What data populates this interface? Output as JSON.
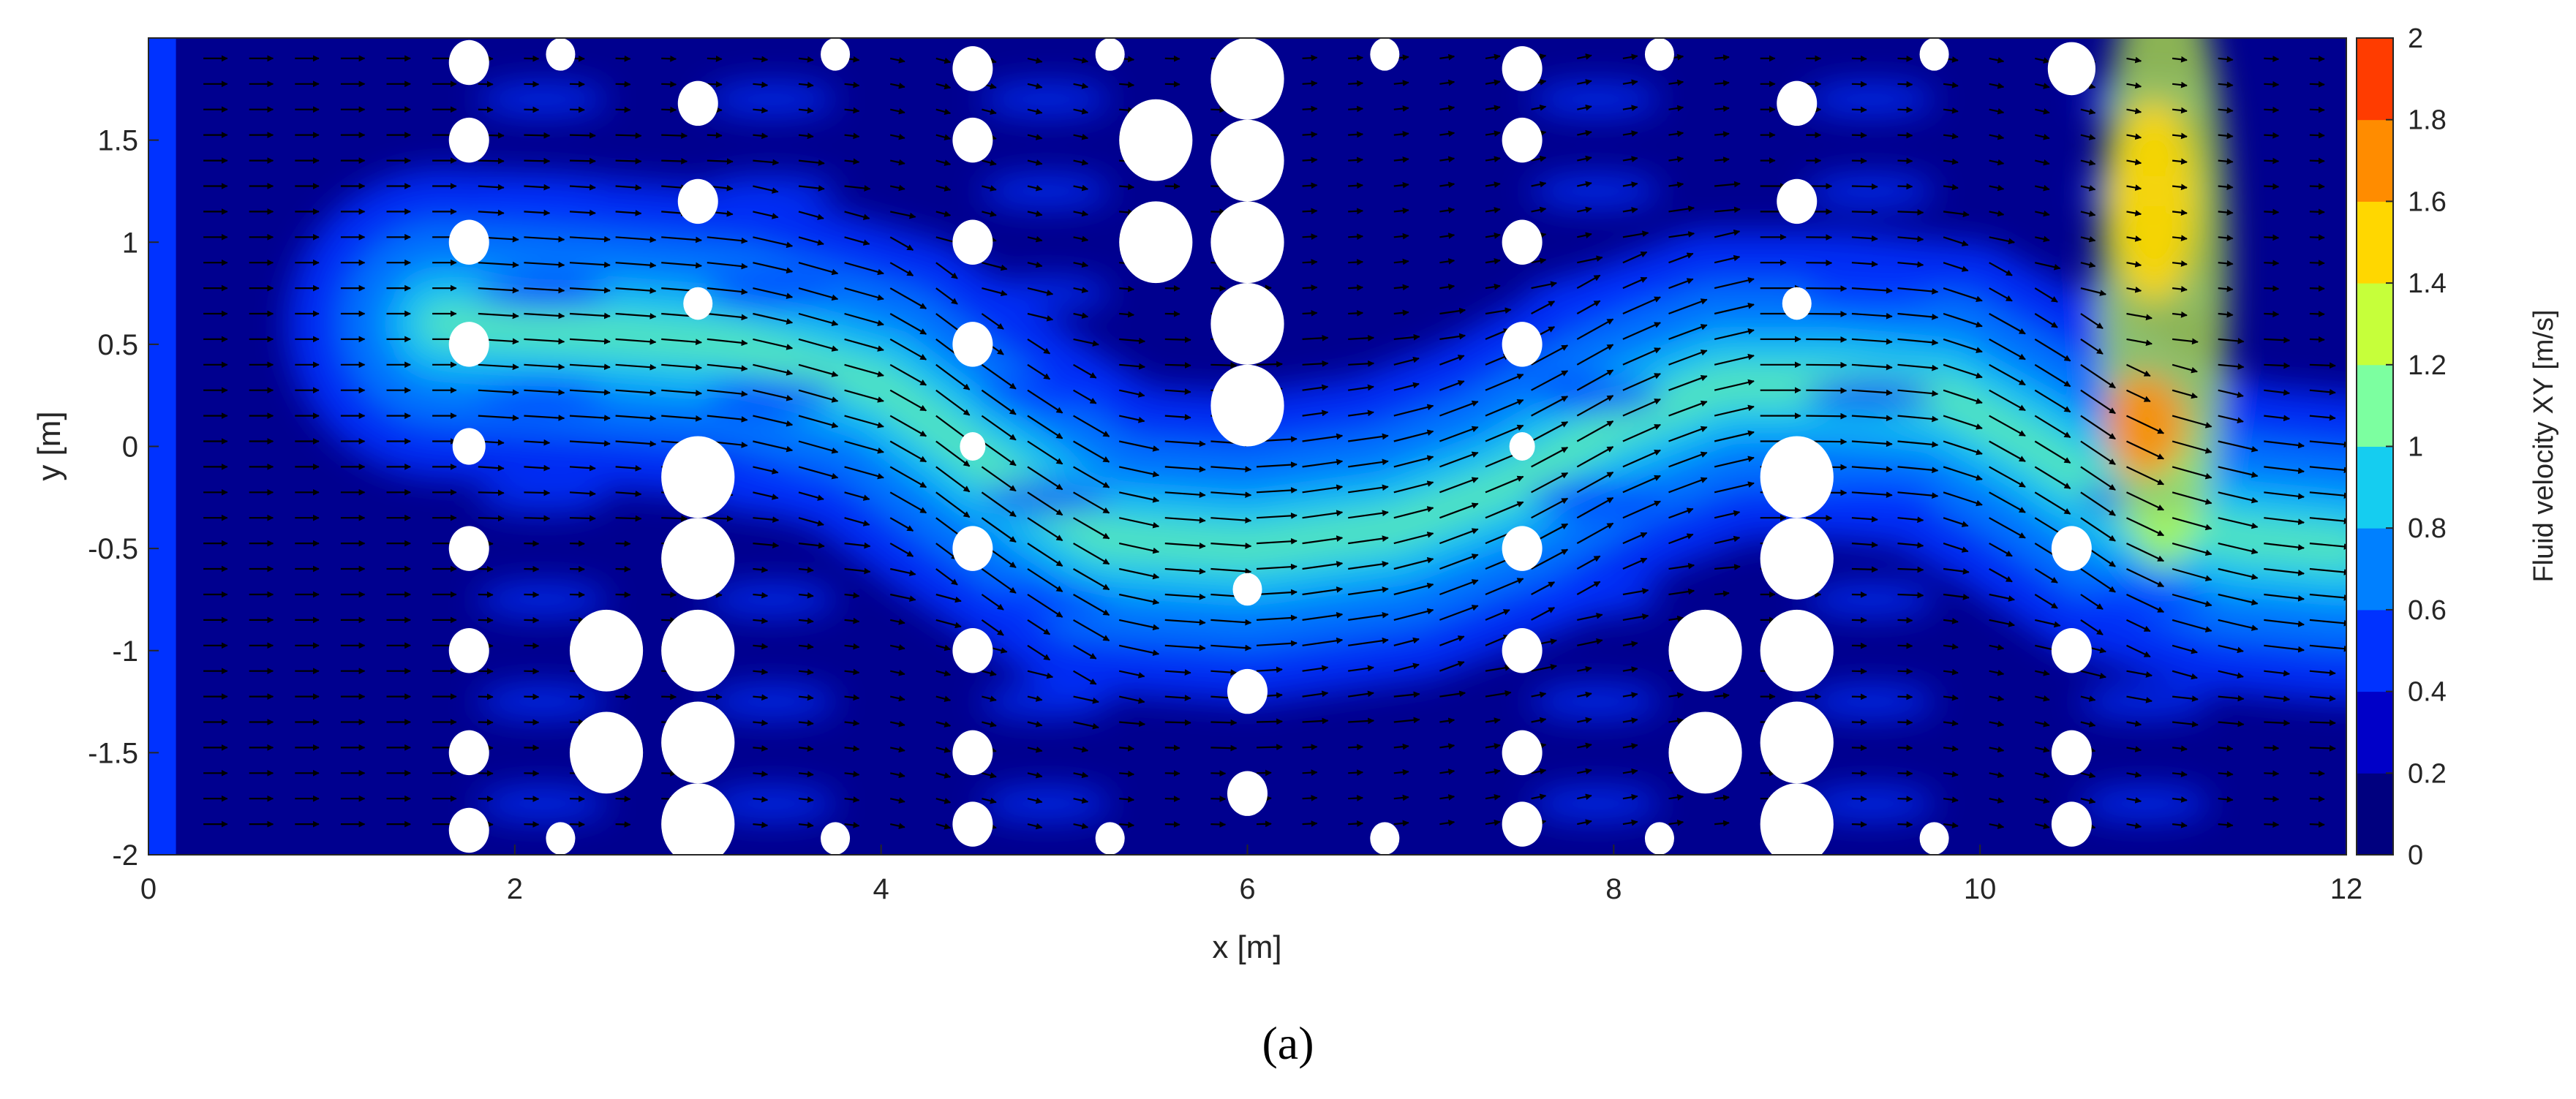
{
  "chart_data": {
    "type": "heatmap",
    "subtype": "velocity-field-with-vectors",
    "title": "",
    "xlabel": "x [m]",
    "ylabel": "y [m]",
    "xlim": [
      0,
      12
    ],
    "ylim": [
      -2,
      2
    ],
    "x_ticks": [
      "0",
      "2",
      "4",
      "6",
      "8",
      "10",
      "12"
    ],
    "y_ticks": [
      "-2",
      "-1.5",
      "-1",
      "-0.5",
      "0",
      "0.5",
      "1",
      "1.5"
    ],
    "y_tick_values": [
      -2,
      -1.5,
      -1,
      -0.5,
      0,
      0.5,
      1,
      1.5
    ],
    "x_tick_values": [
      0,
      2,
      4,
      6,
      8,
      10,
      12
    ],
    "grid": false,
    "colorbar": {
      "label": "Fluid velocity XY [m/s]",
      "range": [
        0,
        2
      ],
      "ticks": [
        "0",
        "0.2",
        "0.4",
        "0.6",
        "0.8",
        "1",
        "1.2",
        "1.4",
        "1.6",
        "1.8",
        "2"
      ],
      "colors": [
        "#00007f",
        "#0000c8",
        "#0032ff",
        "#0080ff",
        "#15cdf0",
        "#7cffa0",
        "#c6ff3a",
        "#ffd700",
        "#ff8c00",
        "#ff3c00"
      ]
    },
    "background_color": "#00008f",
    "obstacles": [
      {
        "x": 1.75,
        "y": 1.88,
        "r": 0.11
      },
      {
        "x": 1.75,
        "y": 1.5,
        "r": 0.11
      },
      {
        "x": 1.75,
        "y": 1.0,
        "r": 0.11
      },
      {
        "x": 1.75,
        "y": 0.5,
        "r": 0.11
      },
      {
        "x": 1.75,
        "y": 0.0,
        "r": 0.09
      },
      {
        "x": 1.75,
        "y": -0.5,
        "r": 0.11
      },
      {
        "x": 1.75,
        "y": -1.0,
        "r": 0.11
      },
      {
        "x": 1.75,
        "y": -1.5,
        "r": 0.11
      },
      {
        "x": 1.75,
        "y": -1.88,
        "r": 0.11
      },
      {
        "x": 2.25,
        "y": 1.92,
        "r": 0.08
      },
      {
        "x": 2.25,
        "y": -1.92,
        "r": 0.08
      },
      {
        "x": 3.0,
        "y": 1.68,
        "r": 0.11
      },
      {
        "x": 3.0,
        "y": 1.2,
        "r": 0.11
      },
      {
        "x": 3.0,
        "y": 0.7,
        "r": 0.08
      },
      {
        "x": 3.0,
        "y": -0.15,
        "r": 0.2
      },
      {
        "x": 3.0,
        "y": -0.55,
        "r": 0.2
      },
      {
        "x": 3.0,
        "y": -1.0,
        "r": 0.2
      },
      {
        "x": 3.0,
        "y": -1.45,
        "r": 0.2
      },
      {
        "x": 3.0,
        "y": -1.85,
        "r": 0.2
      },
      {
        "x": 2.5,
        "y": -1.0,
        "r": 0.2
      },
      {
        "x": 2.5,
        "y": -1.5,
        "r": 0.2
      },
      {
        "x": 3.75,
        "y": 1.92,
        "r": 0.08
      },
      {
        "x": 3.75,
        "y": -1.92,
        "r": 0.08
      },
      {
        "x": 4.5,
        "y": 1.85,
        "r": 0.11
      },
      {
        "x": 4.5,
        "y": 1.5,
        "r": 0.11
      },
      {
        "x": 4.5,
        "y": 1.0,
        "r": 0.11
      },
      {
        "x": 4.5,
        "y": 0.5,
        "r": 0.11
      },
      {
        "x": 4.5,
        "y": 0.0,
        "r": 0.07
      },
      {
        "x": 4.5,
        "y": -0.5,
        "r": 0.11
      },
      {
        "x": 4.5,
        "y": -1.0,
        "r": 0.11
      },
      {
        "x": 4.5,
        "y": -1.5,
        "r": 0.11
      },
      {
        "x": 4.5,
        "y": -1.85,
        "r": 0.11
      },
      {
        "x": 5.25,
        "y": 1.92,
        "r": 0.08
      },
      {
        "x": 5.25,
        "y": -1.92,
        "r": 0.08
      },
      {
        "x": 5.5,
        "y": 1.5,
        "r": 0.2
      },
      {
        "x": 5.5,
        "y": 1.0,
        "r": 0.2
      },
      {
        "x": 6.0,
        "y": 1.8,
        "r": 0.2
      },
      {
        "x": 6.0,
        "y": 1.4,
        "r": 0.2
      },
      {
        "x": 6.0,
        "y": 1.0,
        "r": 0.2
      },
      {
        "x": 6.0,
        "y": 0.6,
        "r": 0.2
      },
      {
        "x": 6.0,
        "y": 0.2,
        "r": 0.2
      },
      {
        "x": 6.0,
        "y": -0.7,
        "r": 0.08
      },
      {
        "x": 6.0,
        "y": -1.2,
        "r": 0.11
      },
      {
        "x": 6.0,
        "y": -1.7,
        "r": 0.11
      },
      {
        "x": 6.75,
        "y": 1.92,
        "r": 0.08
      },
      {
        "x": 6.75,
        "y": -1.92,
        "r": 0.08
      },
      {
        "x": 7.5,
        "y": 1.85,
        "r": 0.11
      },
      {
        "x": 7.5,
        "y": 1.5,
        "r": 0.11
      },
      {
        "x": 7.5,
        "y": 1.0,
        "r": 0.11
      },
      {
        "x": 7.5,
        "y": 0.5,
        "r": 0.11
      },
      {
        "x": 7.5,
        "y": 0.0,
        "r": 0.07
      },
      {
        "x": 7.5,
        "y": -0.5,
        "r": 0.11
      },
      {
        "x": 7.5,
        "y": -1.0,
        "r": 0.11
      },
      {
        "x": 7.5,
        "y": -1.5,
        "r": 0.11
      },
      {
        "x": 7.5,
        "y": -1.85,
        "r": 0.11
      },
      {
        "x": 8.25,
        "y": 1.92,
        "r": 0.08
      },
      {
        "x": 8.25,
        "y": -1.92,
        "r": 0.08
      },
      {
        "x": 8.5,
        "y": -1.0,
        "r": 0.2
      },
      {
        "x": 8.5,
        "y": -1.5,
        "r": 0.2
      },
      {
        "x": 9.0,
        "y": 1.68,
        "r": 0.11
      },
      {
        "x": 9.0,
        "y": 1.2,
        "r": 0.11
      },
      {
        "x": 9.0,
        "y": 0.7,
        "r": 0.08
      },
      {
        "x": 9.0,
        "y": -0.15,
        "r": 0.2
      },
      {
        "x": 9.0,
        "y": -0.55,
        "r": 0.2
      },
      {
        "x": 9.0,
        "y": -1.0,
        "r": 0.2
      },
      {
        "x": 9.0,
        "y": -1.45,
        "r": 0.2
      },
      {
        "x": 9.0,
        "y": -1.85,
        "r": 0.2
      },
      {
        "x": 9.75,
        "y": 1.92,
        "r": 0.08
      },
      {
        "x": 9.75,
        "y": -1.92,
        "r": 0.08
      },
      {
        "x": 10.5,
        "y": 1.85,
        "r": 0.13
      },
      {
        "x": 10.5,
        "y": -0.5,
        "r": 0.11
      },
      {
        "x": 10.5,
        "y": -1.0,
        "r": 0.11
      },
      {
        "x": 10.5,
        "y": -1.5,
        "r": 0.11
      },
      {
        "x": 10.5,
        "y": -1.85,
        "r": 0.11
      }
    ]
  },
  "caption": "(a)"
}
